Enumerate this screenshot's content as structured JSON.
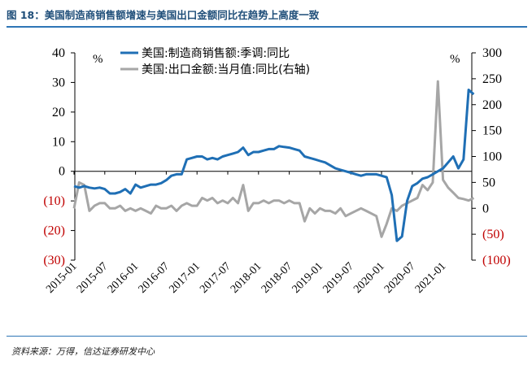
{
  "header": {
    "title": "图 18：美国制造商销售额增速与美国出口金额同比在趋势上高度一致"
  },
  "footer": {
    "source": "资料来源：万得，信达证券研发中心"
  },
  "chart_data": {
    "type": "line",
    "left_unit": "%",
    "right_unit": "%",
    "y_left": {
      "range": [
        -30,
        40
      ],
      "ticks": [
        40,
        30,
        20,
        10,
        0,
        -10,
        -20,
        -30
      ],
      "tick_labels": [
        "40",
        "30",
        "20",
        "10",
        "0",
        "(10)",
        "(20)",
        "(30)"
      ]
    },
    "y_right": {
      "range": [
        -100,
        300
      ],
      "ticks": [
        300,
        250,
        200,
        150,
        100,
        50,
        0,
        -50,
        -100
      ],
      "tick_labels": [
        "300",
        "250",
        "200",
        "150",
        "100",
        "50",
        "0",
        "(50)",
        "(100)"
      ]
    },
    "x_tick_labels": [
      "2015-01",
      "2015-07",
      "2016-01",
      "2016-07",
      "2017-01",
      "2017-07",
      "2018-01",
      "2018-07",
      "2019-01",
      "2019-07",
      "2020-01",
      "2020-07",
      "2021-01"
    ],
    "x_start": "2015-01",
    "colors": {
      "series1": "#1f6fb5",
      "series2": "#a6a6a6",
      "negative_tick": "#c00000"
    },
    "legend_position": "top-center",
    "series": [
      {
        "name": "美国:制造商销售额:季调:同比",
        "axis": "left",
        "values": [
          -5,
          -5.5,
          -5,
          -5.5,
          -5.8,
          -5.5,
          -6,
          -7.5,
          -7.5,
          -7,
          -6,
          -7.5,
          -4.5,
          -5.5,
          -5,
          -4.5,
          -4.5,
          -4,
          -3,
          -1.5,
          -1,
          -1,
          4,
          4.5,
          5,
          5,
          4,
          4.5,
          4,
          5,
          5.5,
          6,
          6.5,
          8,
          5.5,
          6.5,
          6.5,
          7,
          7.5,
          7.5,
          8.5,
          8.2,
          8,
          7.5,
          7,
          5,
          4.5,
          4,
          3.5,
          3,
          2,
          1,
          0.5,
          0,
          -0.5,
          -1,
          -1.5,
          -1,
          -1,
          -1,
          -1.5,
          -2,
          -8,
          -23.5,
          -22,
          -10,
          -5,
          -4,
          -2.5,
          -2,
          -1,
          0,
          1,
          3,
          5,
          1,
          4,
          27.5,
          26
        ]
      },
      {
        "name": "美国:出口金额:当月值:同比(右轴)",
        "axis": "right",
        "values": [
          0,
          50,
          45,
          -5,
          5,
          10,
          10,
          0,
          0,
          5,
          -5,
          0,
          -5,
          0,
          -5,
          -10,
          5,
          0,
          0,
          5,
          -5,
          5,
          10,
          5,
          5,
          20,
          15,
          20,
          10,
          15,
          10,
          20,
          10,
          45,
          -5,
          10,
          10,
          15,
          10,
          15,
          15,
          10,
          15,
          10,
          10,
          -25,
          0,
          -10,
          0,
          -5,
          -5,
          -10,
          0,
          -15,
          -10,
          -5,
          0,
          -5,
          -10,
          -15,
          -55,
          -30,
          0,
          -5,
          5,
          10,
          15,
          20,
          45,
          35,
          50,
          245,
          55,
          40,
          30,
          20,
          18,
          15,
          20
        ]
      }
    ]
  }
}
